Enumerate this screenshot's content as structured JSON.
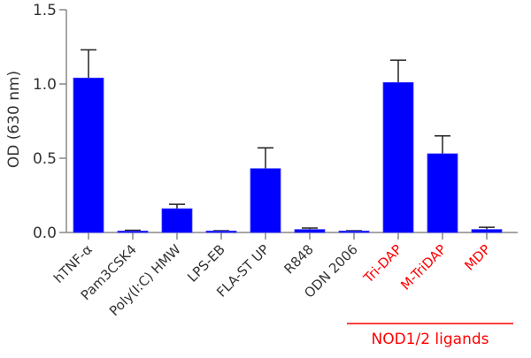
{
  "chart_data": {
    "type": "bar",
    "title": "",
    "xlabel": "",
    "ylabel": "OD (630 nm)",
    "ylim": [
      0,
      1.5
    ],
    "yticks": [
      0.0,
      0.5,
      1.0,
      1.5
    ],
    "ytick_labels": [
      "0.0",
      "0.5",
      "1.0",
      "1.5"
    ],
    "grid": false,
    "categories": [
      "hTNF-α",
      "Pam3CSK4",
      "Poly(I:C) HMW",
      "LPS-EB",
      "FLA-ST UP",
      "R848",
      "ODN 2006",
      "Tri-DAP",
      "M-TriDAP",
      "MDP"
    ],
    "values": [
      1.04,
      0.01,
      0.16,
      0.01,
      0.43,
      0.02,
      0.01,
      1.01,
      0.53,
      0.02
    ],
    "error_upper": [
      1.23,
      0.015,
      0.19,
      0.012,
      0.57,
      0.03,
      0.012,
      1.16,
      0.65,
      0.035
    ],
    "bar_color": "#0000ff",
    "label_colors": [
      "#333333",
      "#333333",
      "#333333",
      "#333333",
      "#333333",
      "#333333",
      "#333333",
      "#ff0000",
      "#ff0000",
      "#ff0000"
    ],
    "annotations": [
      {
        "text": "NOD1/2 ligands",
        "color": "#ff0000",
        "spans": [
          "Tri-DAP",
          "M-TriDAP",
          "MDP"
        ]
      }
    ]
  }
}
